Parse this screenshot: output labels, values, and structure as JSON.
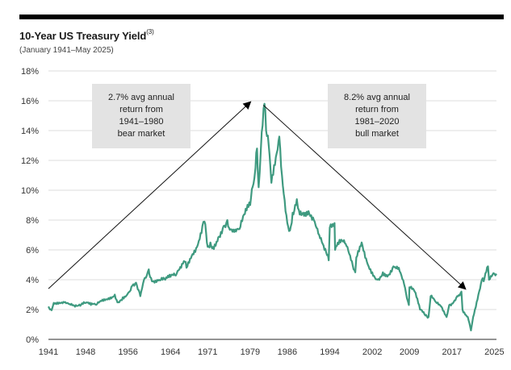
{
  "chart_data": {
    "type": "line",
    "title": "10-Year US Treasury Yield",
    "title_footnote": "(3)",
    "subtitle": "(January 1941–May 2025)",
    "xlabel": "",
    "ylabel": "",
    "x_range": [
      1941,
      2025.4
    ],
    "ylim": [
      0,
      18
    ],
    "grid": true,
    "y_ticks": [
      0,
      2,
      4,
      6,
      8,
      10,
      12,
      14,
      16,
      18
    ],
    "y_tick_labels": [
      "0%",
      "2%",
      "4%",
      "6%",
      "8%",
      "10%",
      "12%",
      "14%",
      "16%",
      "18%"
    ],
    "x_ticks": [
      1941,
      1948,
      1956,
      1964,
      1971,
      1979,
      1986,
      1994,
      2002,
      2009,
      2017,
      2025
    ],
    "x_tick_labels": [
      "1941",
      "1948",
      "1956",
      "1964",
      "1971",
      "1979",
      "1986",
      "1994",
      "2002",
      "2009",
      "2017",
      "2025"
    ],
    "line_color": "#3f9a80",
    "series": [
      {
        "name": "10-Year US Treasury Yield",
        "x": [
          1941,
          1941.3,
          1941.6,
          1942,
          1943,
          1944,
          1945,
          1946,
          1946.5,
          1947,
          1948,
          1949,
          1950,
          1951,
          1952,
          1953,
          1953.5,
          1954,
          1954.5,
          1955,
          1956,
          1956.8,
          1957,
          1957.5,
          1958,
          1958.3,
          1959,
          1959.9,
          1960,
          1960.5,
          1961,
          1962,
          1963,
          1964,
          1965,
          1966,
          1966.7,
          1967,
          1968,
          1969,
          1970,
          1970.4,
          1971,
          1971.5,
          1972,
          1973,
          1974,
          1974.7,
          1975,
          1976,
          1977,
          1978,
          1979,
          1979.8,
          1980,
          1980.3,
          1980.6,
          1981,
          1981.7,
          1982,
          1982.5,
          1983,
          1984,
          1984.5,
          1985,
          1986,
          1986.5,
          1987,
          1987.8,
          1988,
          1989,
          1990,
          1991,
          1992,
          1993,
          1993.8,
          1994,
          1994.9,
          1995,
          1996,
          1997,
          1998,
          1998.8,
          1999,
          2000,
          2001,
          2002,
          2003,
          2004,
          2005,
          2006,
          2007,
          2008,
          2008.9,
          2009,
          2010,
          2011,
          2012,
          2012.6,
          2013,
          2014,
          2015,
          2016,
          2016.5,
          2017,
          2018,
          2018.8,
          2019,
          2020,
          2020.6,
          2021,
          2022,
          2022.8,
          2023,
          2023.8,
          2024,
          2025,
          2025.4
        ],
        "values": [
          2.2,
          2.0,
          1.95,
          2.45,
          2.47,
          2.48,
          2.37,
          2.19,
          2.25,
          2.25,
          2.44,
          2.31,
          2.32,
          2.57,
          2.68,
          2.83,
          3.0,
          2.48,
          2.6,
          2.82,
          3.1,
          3.6,
          3.7,
          3.8,
          3.3,
          2.9,
          4.0,
          4.7,
          4.4,
          3.9,
          3.8,
          3.95,
          4.0,
          4.19,
          4.28,
          4.8,
          5.2,
          4.8,
          5.6,
          6.2,
          7.6,
          7.9,
          6.2,
          6.5,
          6.2,
          6.85,
          7.6,
          8.0,
          7.5,
          7.2,
          7.4,
          8.4,
          9.0,
          10.8,
          11.5,
          12.8,
          10.2,
          12.6,
          15.8,
          14.0,
          13.0,
          10.5,
          12.5,
          13.6,
          11.0,
          7.8,
          7.3,
          8.5,
          9.4,
          8.8,
          8.5,
          8.6,
          8.0,
          7.0,
          6.0,
          5.3,
          7.5,
          7.8,
          6.0,
          6.5,
          6.4,
          5.3,
          4.5,
          5.5,
          6.5,
          5.2,
          4.5,
          4.0,
          4.5,
          4.3,
          4.9,
          4.8,
          3.7,
          2.3,
          3.5,
          3.2,
          2.0,
          1.6,
          1.5,
          2.9,
          2.5,
          2.2,
          1.5,
          2.3,
          2.4,
          2.9,
          3.2,
          2.0,
          1.5,
          0.6,
          1.5,
          3.0,
          4.1,
          3.9,
          4.9,
          4.0,
          4.4,
          4.4
        ]
      }
    ],
    "annotations": [
      {
        "text": "2.7% avg annual\nreturn from\n1941–1980\nbear market",
        "arrow_from": [
          1941,
          3.4
        ],
        "arrow_to": [
          1979,
          15.9
        ]
      },
      {
        "text": "8.2% avg annual\nreturn from\n1981–2020\nbull market",
        "arrow_from": [
          1981.5,
          15.7
        ],
        "arrow_to": [
          2019.5,
          3.4
        ]
      }
    ]
  }
}
